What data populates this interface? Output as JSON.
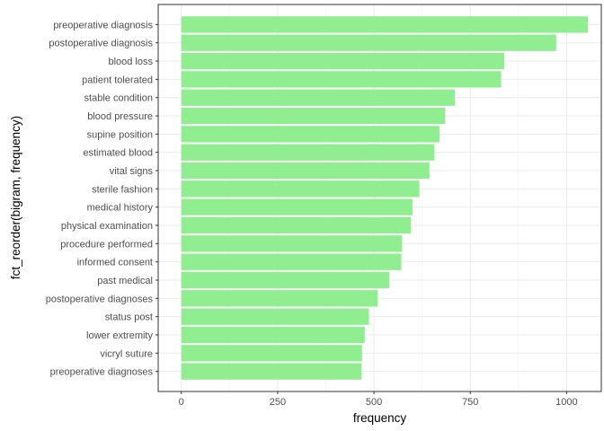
{
  "chart_data": {
    "type": "bar",
    "orientation": "horizontal",
    "xlabel": "frequency",
    "ylabel": "fct_reorder(bigram, frequency)",
    "xlim": [
      -60,
      1090
    ],
    "x_ticks": [
      0,
      250,
      500,
      750,
      1000
    ],
    "x_tick_labels": [
      "0",
      "250",
      "500",
      "750",
      "1000"
    ],
    "grid": true,
    "bar_color": "#90EE90",
    "categories": [
      "preoperative diagnosis",
      "postoperative diagnosis",
      "blood loss",
      "patient tolerated",
      "stable condition",
      "blood pressure",
      "supine position",
      "estimated blood",
      "vital signs",
      "sterile fashion",
      "medical history",
      "physical examination",
      "procedure performed",
      "informed consent",
      "past medical",
      "postoperative diagnoses",
      "status post",
      "lower extremity",
      "vicryl suture",
      "preoperative diagnoses"
    ],
    "values": [
      1055,
      973,
      838,
      830,
      710,
      685,
      670,
      657,
      644,
      618,
      600,
      596,
      573,
      571,
      540,
      510,
      487,
      476,
      469,
      468
    ]
  }
}
